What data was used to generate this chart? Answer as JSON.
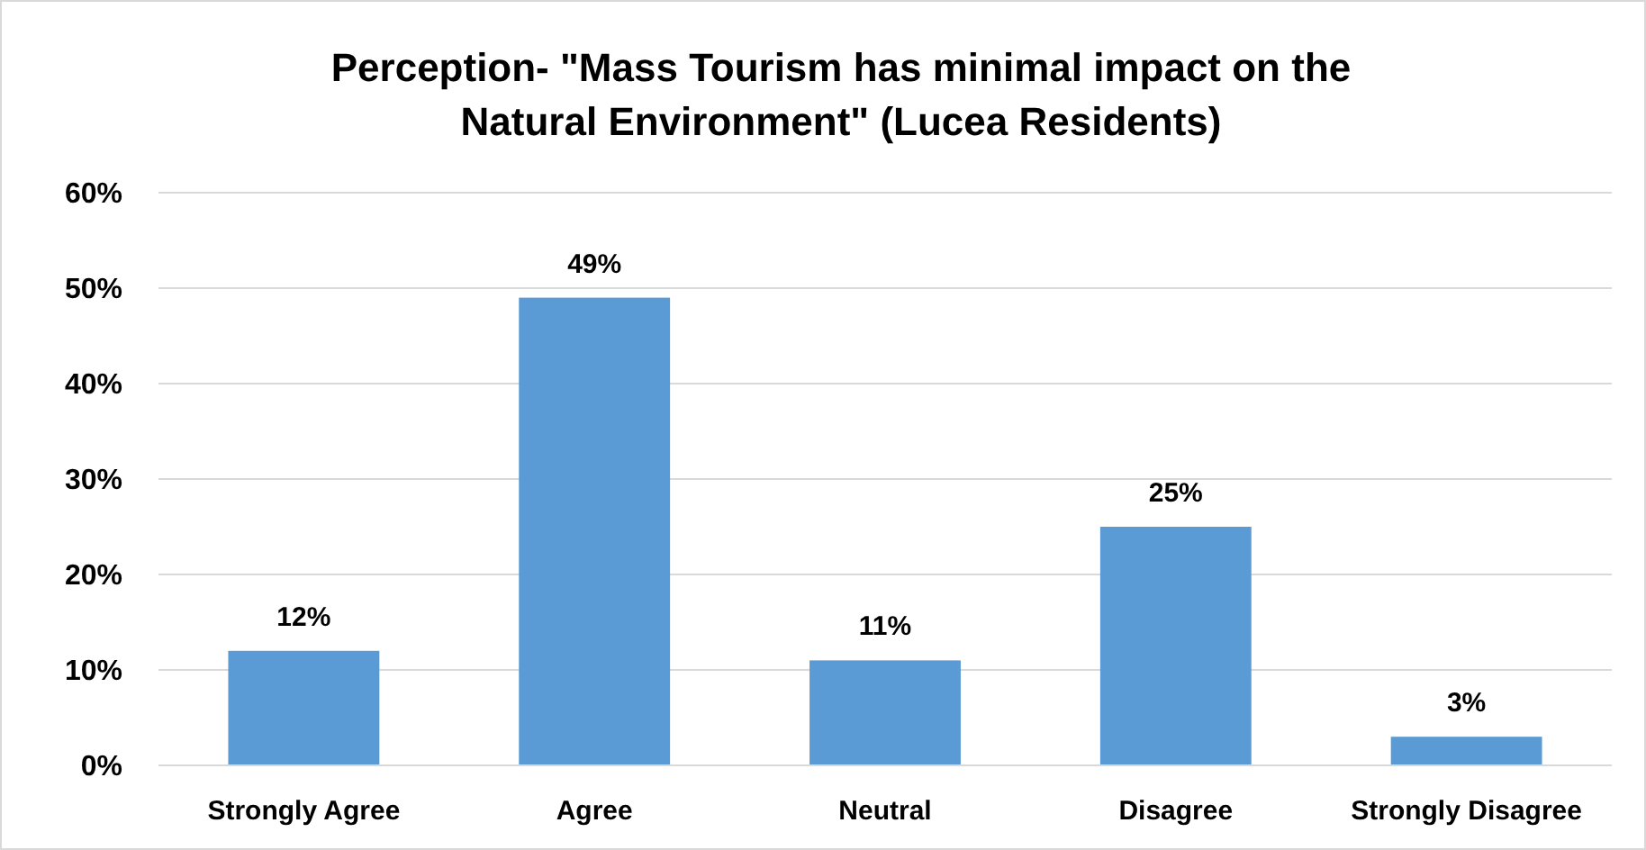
{
  "chart_data": {
    "type": "bar",
    "title": "Perception- \"Mass Tourism has minimal impact on the Natural Environment\" (Lucea Residents)",
    "categories": [
      "Strongly Agree",
      "Agree",
      "Neutral",
      "Disagree",
      "Strongly Disagree"
    ],
    "values": [
      12,
      49,
      11,
      25,
      3
    ],
    "value_labels": [
      "12%",
      "49%",
      "11%",
      "25%",
      "3%"
    ],
    "color": "#5b9bd5",
    "ylim": [
      0,
      60
    ],
    "yticks": [
      {
        "value": 0,
        "label": "0%"
      },
      {
        "value": 10,
        "label": "10%"
      },
      {
        "value": 20,
        "label": "20%"
      },
      {
        "value": 30,
        "label": "30%"
      },
      {
        "value": 40,
        "label": "40%"
      },
      {
        "value": 50,
        "label": "50%"
      },
      {
        "value": 60,
        "label": "60%"
      }
    ],
    "grid": "y"
  }
}
